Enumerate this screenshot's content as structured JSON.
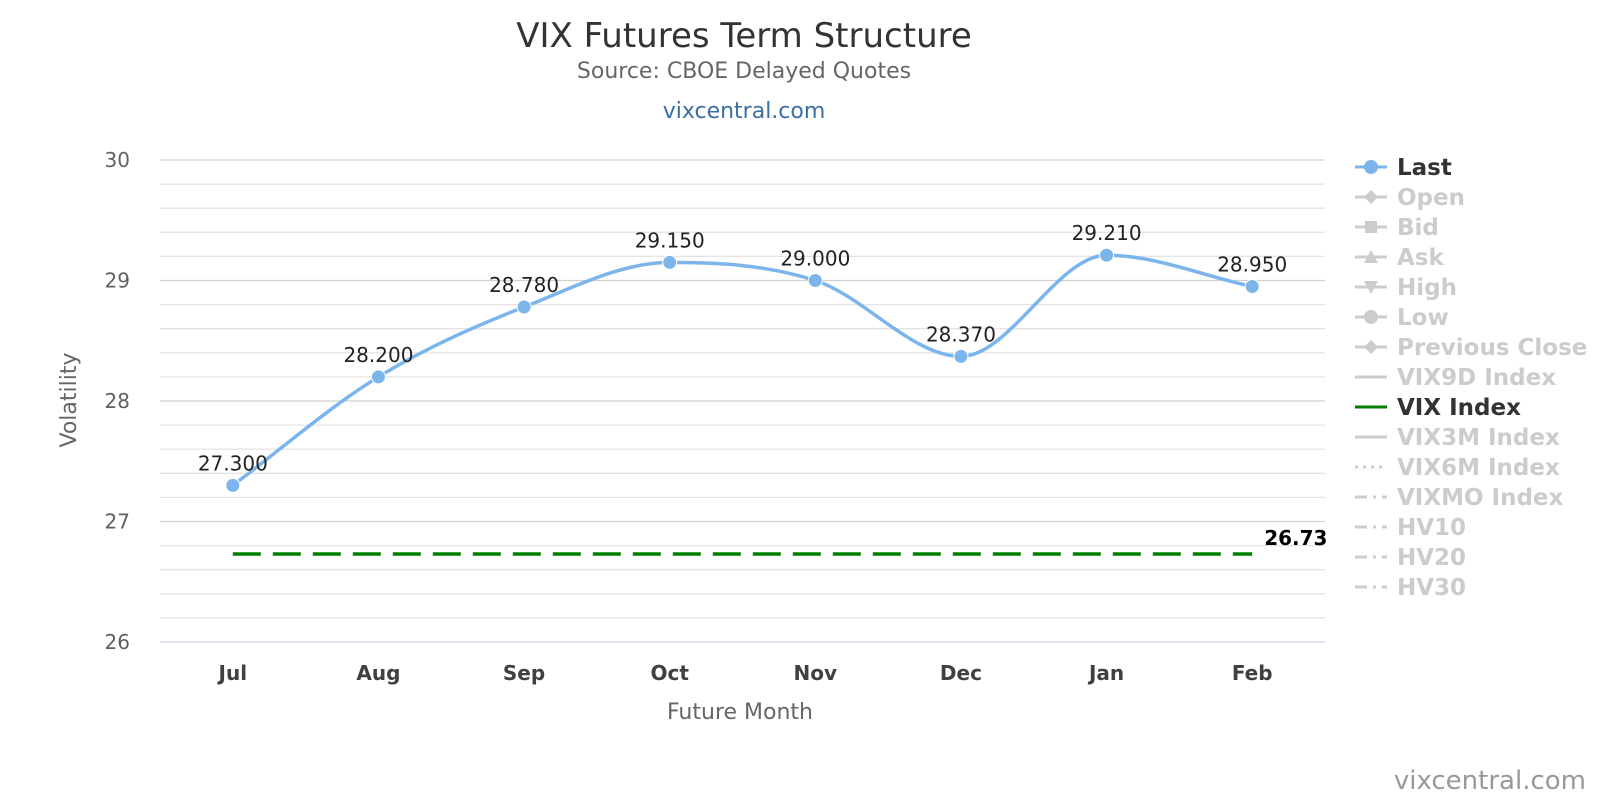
{
  "chart_data": {
    "type": "line",
    "title": "VIX Futures Term Structure",
    "subtitle": "Source: CBOE Delayed Quotes",
    "link_text": "vixcentral.com",
    "credit": "vixcentral.com",
    "xlabel": "Future Month",
    "ylabel": "Volatility",
    "ylim": [
      26,
      30
    ],
    "yticks": [
      "26",
      "27",
      "28",
      "29",
      "30"
    ],
    "categories": [
      "Jul",
      "Aug",
      "Sep",
      "Oct",
      "Nov",
      "Dec",
      "Jan",
      "Feb"
    ],
    "grid": true,
    "legend_position": "right",
    "series": [
      {
        "name": "Last",
        "values": [
          27.3,
          28.2,
          28.78,
          29.15,
          29.0,
          28.37,
          29.21,
          28.95
        ],
        "labels": [
          "27.300",
          "28.200",
          "28.780",
          "29.150",
          "29.000",
          "28.370",
          "29.210",
          "28.950"
        ],
        "color": "#7cb5ec"
      },
      {
        "name": "VIX Index",
        "value": 26.73,
        "label": "26.73",
        "color": "#008000",
        "style": "dashed"
      }
    ],
    "legend": [
      {
        "name": "Last",
        "active": true,
        "symbol": "circle",
        "color": "#7cb5ec"
      },
      {
        "name": "Open",
        "active": false,
        "symbol": "diamond"
      },
      {
        "name": "Bid",
        "active": false,
        "symbol": "square"
      },
      {
        "name": "Ask",
        "active": false,
        "symbol": "triangle"
      },
      {
        "name": "High",
        "active": false,
        "symbol": "triangle-down"
      },
      {
        "name": "Low",
        "active": false,
        "symbol": "circle"
      },
      {
        "name": "Previous Close",
        "active": false,
        "symbol": "diamond"
      },
      {
        "name": "VIX9D Index",
        "active": false,
        "symbol": "line"
      },
      {
        "name": "VIX Index",
        "active": true,
        "symbol": "line",
        "color": "#008000"
      },
      {
        "name": "VIX3M Index",
        "active": false,
        "symbol": "line"
      },
      {
        "name": "VIX6M Index",
        "active": false,
        "symbol": "dotted"
      },
      {
        "name": "VIXMO Index",
        "active": false,
        "symbol": "dashdot"
      },
      {
        "name": "HV10",
        "active": false,
        "symbol": "dashdot"
      },
      {
        "name": "HV20",
        "active": false,
        "symbol": "dashdot"
      },
      {
        "name": "HV30",
        "active": false,
        "symbol": "dashdot"
      }
    ],
    "inactive_color": "#cccccc"
  }
}
